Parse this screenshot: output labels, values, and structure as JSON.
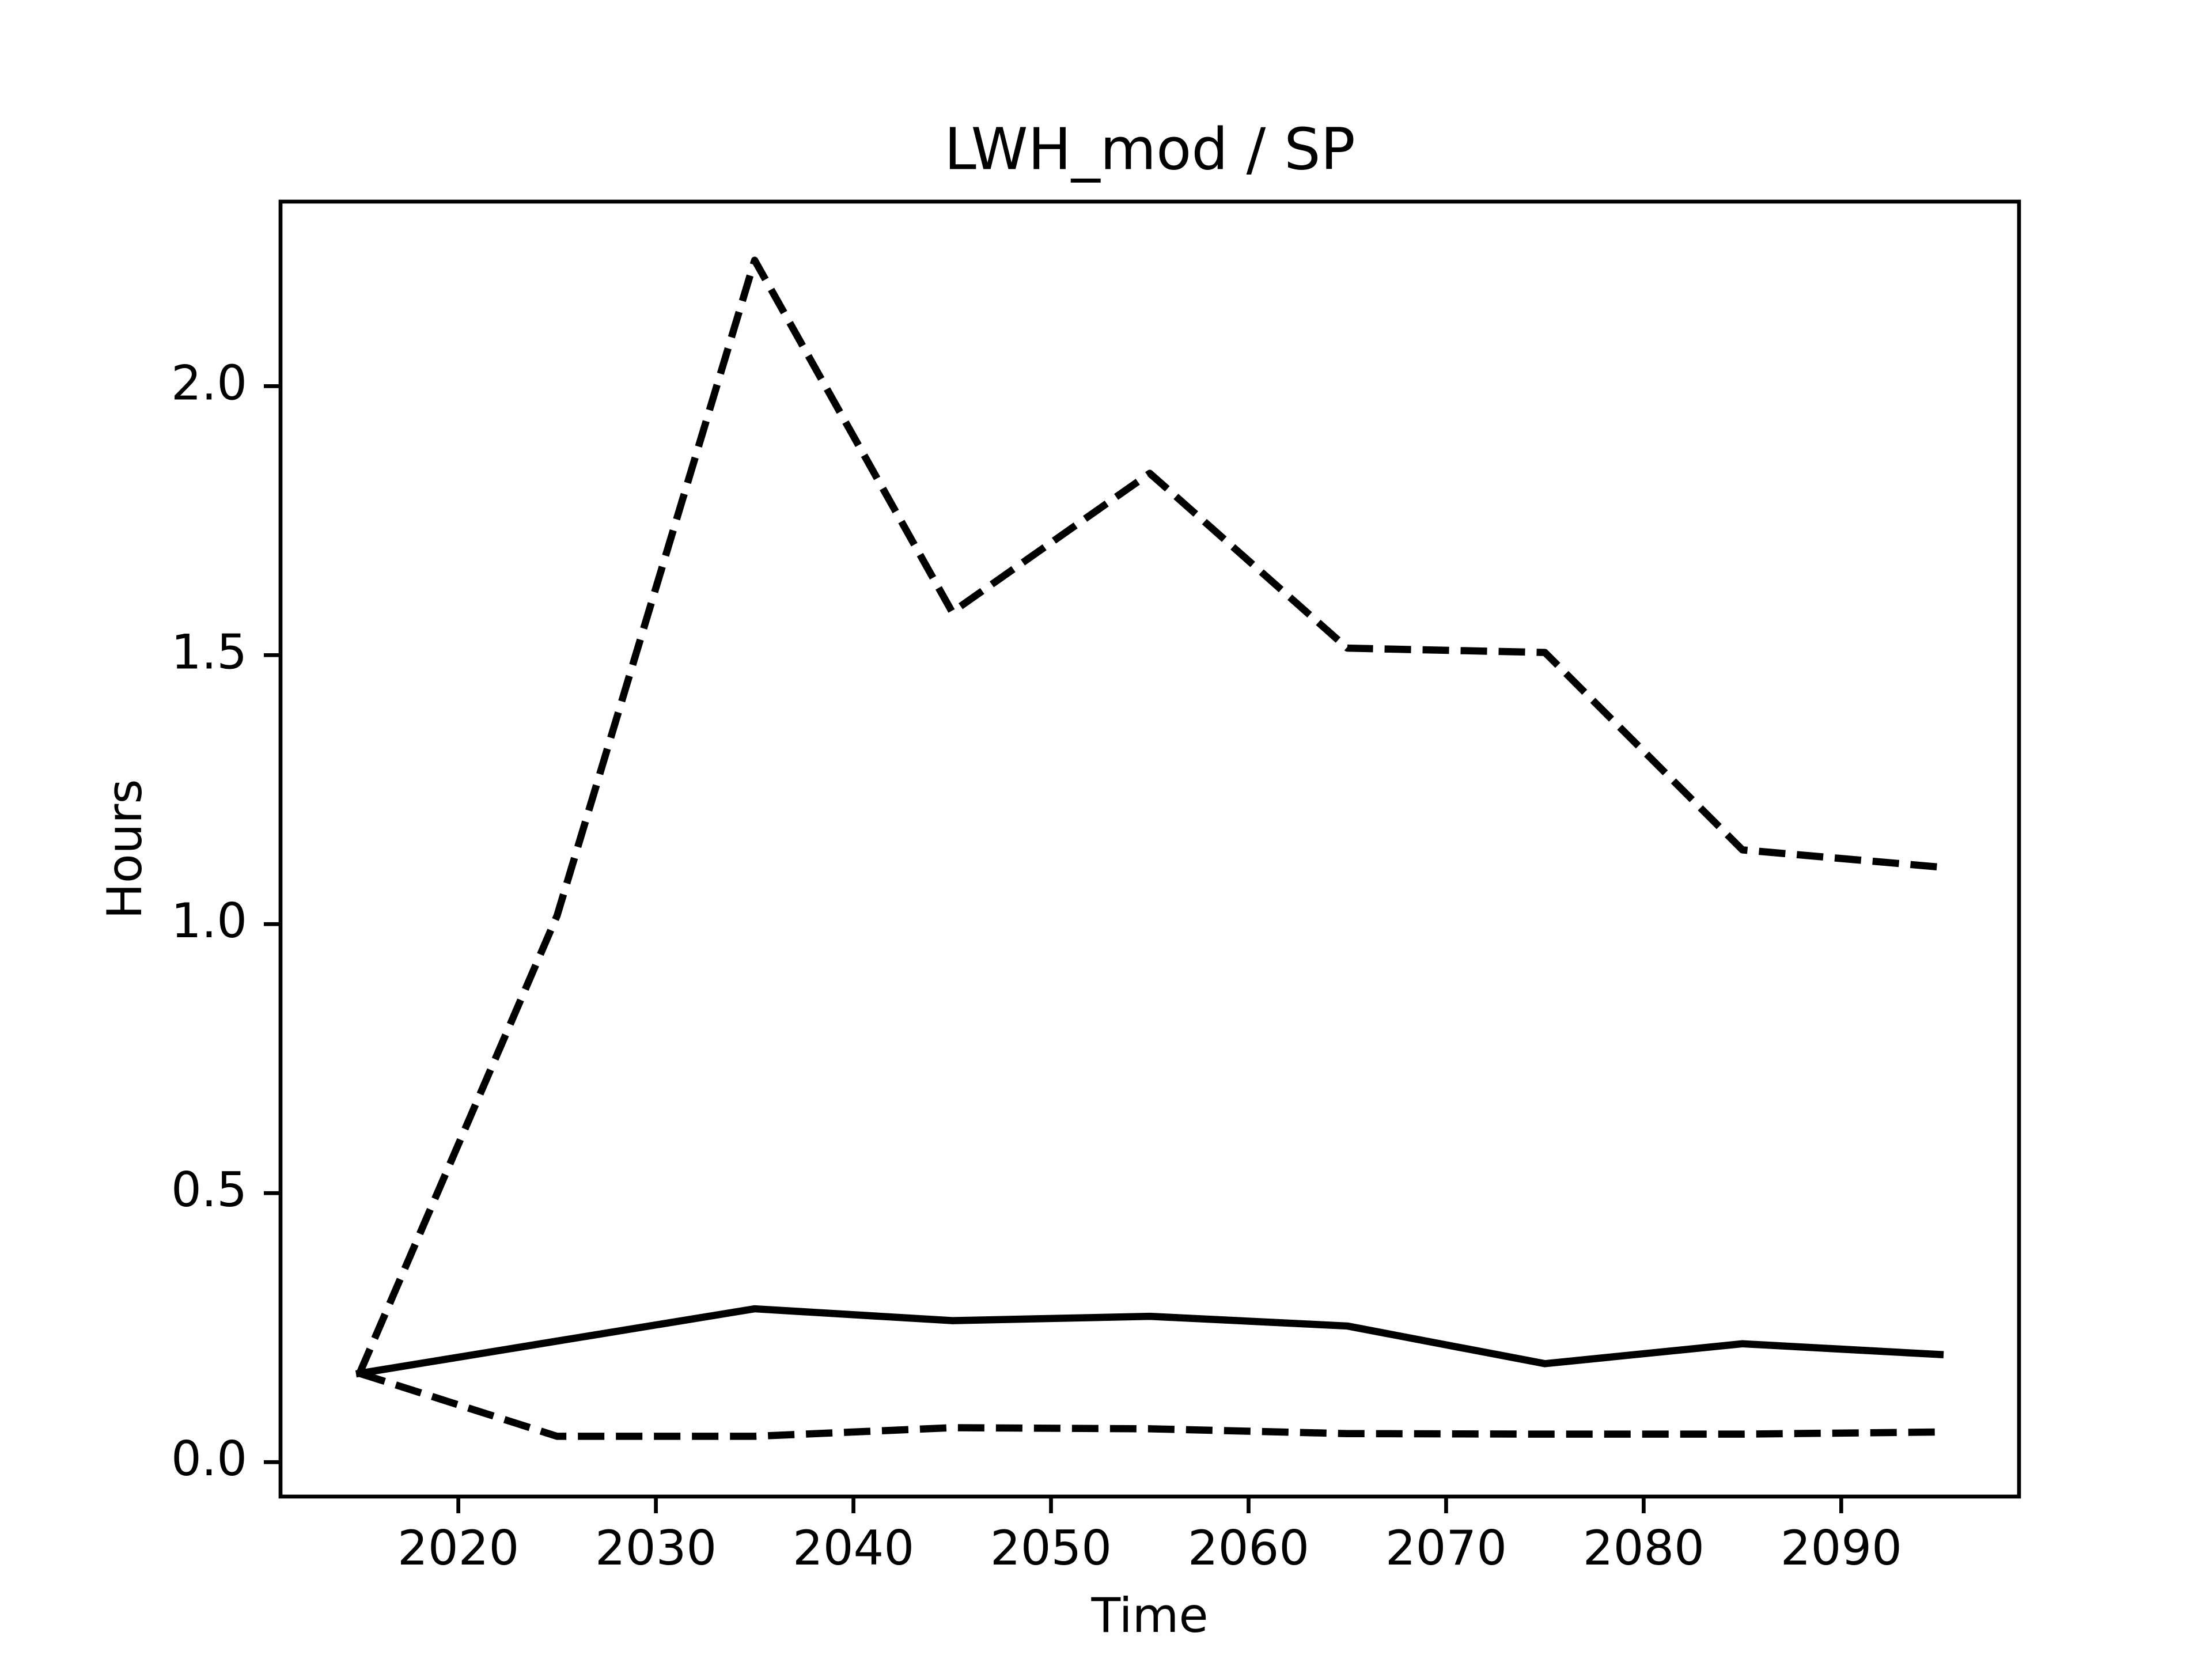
{
  "chart_data": {
    "type": "line",
    "title": "LWH_mod / SP",
    "xlabel": "Time",
    "ylabel": "Hours",
    "x": [
      2015,
      2025,
      2035,
      2045,
      2055,
      2065,
      2075,
      2085,
      2095
    ],
    "series": [
      {
        "color": "#000000",
        "linestyle": "solid",
        "values": [
          0.165,
          0.225,
          0.285,
          0.263,
          0.271,
          0.253,
          0.183,
          0.22,
          0.2
        ]
      },
      {
        "color": "#000000",
        "linestyle": "dashed",
        "values": [
          0.165,
          1.016,
          2.234,
          1.58,
          1.838,
          1.513,
          1.505,
          1.138,
          1.106
        ]
      },
      {
        "color": "#000000",
        "linestyle": "dashed",
        "values": [
          0.165,
          0.048,
          0.048,
          0.064,
          0.062,
          0.053,
          0.052,
          0.052,
          0.056
        ]
      }
    ],
    "xlim": [
      2011,
      2099
    ],
    "xticks": [
      2020,
      2030,
      2040,
      2050,
      2060,
      2070,
      2080,
      2090
    ],
    "ylim": [
      -0.064,
      2.343
    ],
    "yticks": [
      {
        "value": 0,
        "label": "0.0"
      },
      0.5,
      {
        "value": 1,
        "label": "1.0"
      },
      1.5,
      {
        "value": 2,
        "label": "2.0"
      }
    ],
    "grid": false
  }
}
